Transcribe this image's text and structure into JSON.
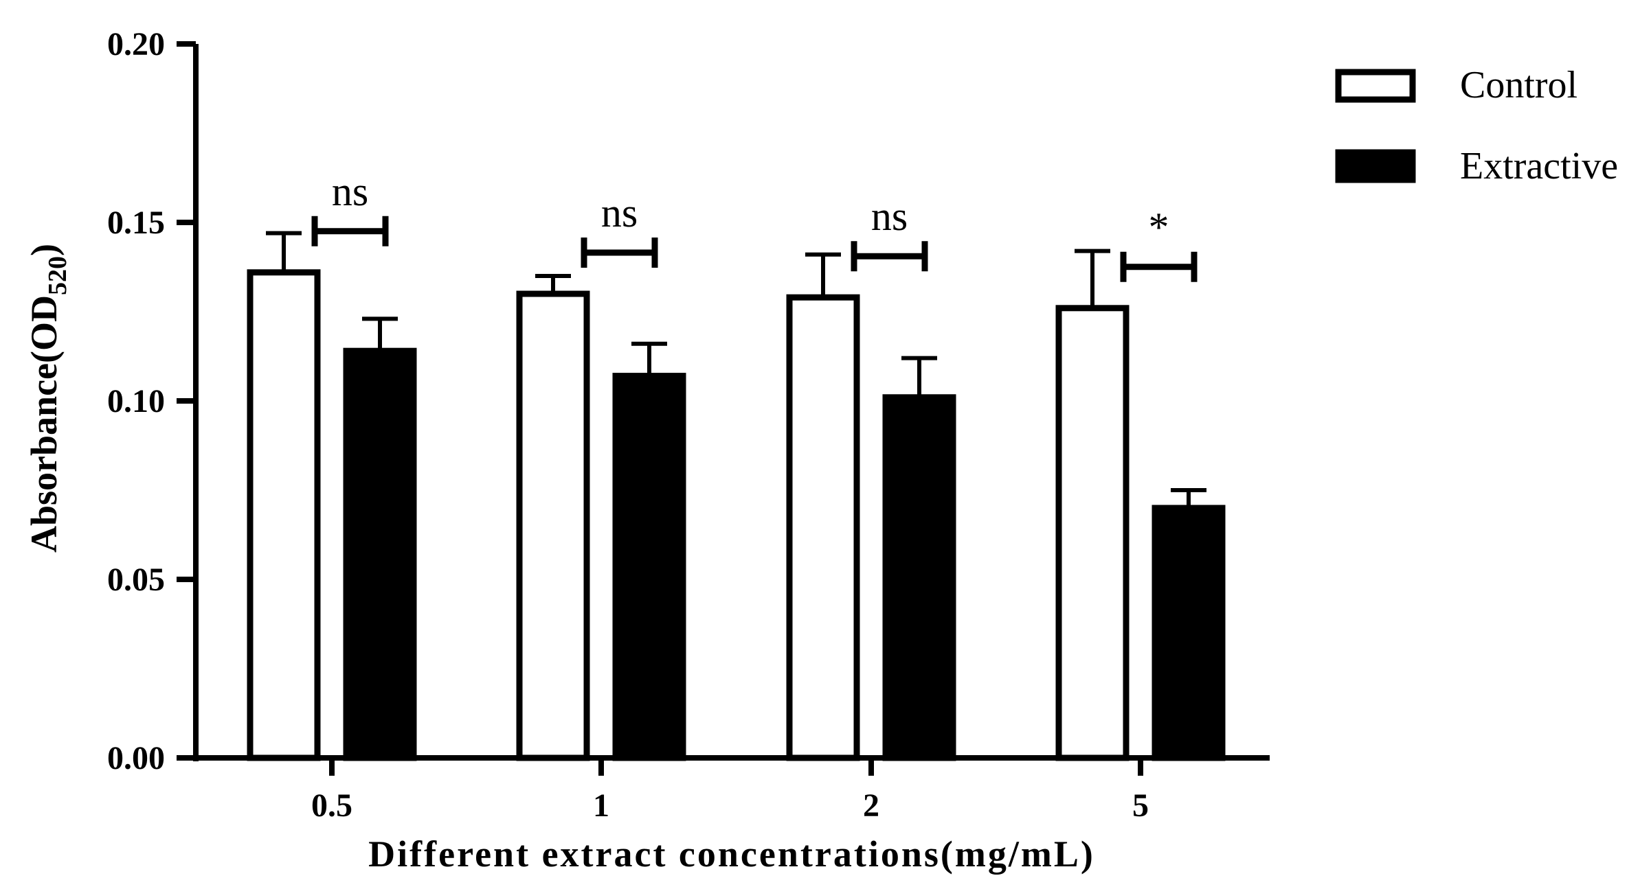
{
  "chart_data": {
    "type": "bar",
    "categories": [
      "0.5",
      "1",
      "2",
      "5"
    ],
    "series": [
      {
        "name": "Control",
        "values": [
          0.136,
          0.13,
          0.129,
          0.126
        ],
        "errors": [
          0.011,
          0.005,
          0.012,
          0.016
        ],
        "fill": "#ffffff"
      },
      {
        "name": "Extractive",
        "values": [
          0.114,
          0.107,
          0.101,
          0.07
        ],
        "errors": [
          0.009,
          0.009,
          0.011,
          0.005
        ],
        "fill": "#000000"
      }
    ],
    "significance": [
      "ns",
      "ns",
      "ns",
      "*"
    ],
    "xlabel": "Different extract concentrations(mg/mL)",
    "ylabel_main": "Absorbance(OD",
    "ylabel_sub": "520",
    "ylim": [
      0,
      0.2
    ],
    "yticks": [
      "0.00",
      "0.05",
      "0.10",
      "0.15",
      "0.20"
    ],
    "grid": false,
    "legend_position": "top-right"
  }
}
